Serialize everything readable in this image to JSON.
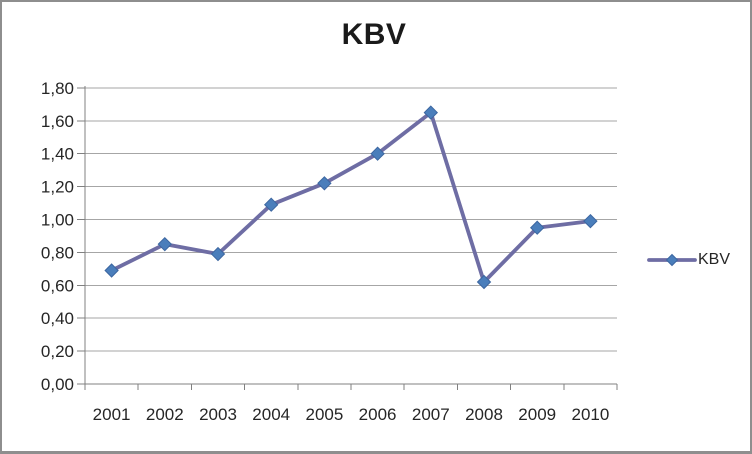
{
  "chart_data": {
    "type": "line",
    "title": "KBV",
    "categories": [
      "2001",
      "2002",
      "2003",
      "2004",
      "2005",
      "2006",
      "2007",
      "2008",
      "2009",
      "2010"
    ],
    "series": [
      {
        "name": "KBV",
        "values": [
          0.69,
          0.85,
          0.79,
          1.09,
          1.22,
          1.4,
          1.65,
          0.62,
          0.95,
          0.99
        ]
      }
    ],
    "y_ticks": {
      "labels": [
        "0,00",
        "0,20",
        "0,40",
        "0,60",
        "0,80",
        "1,00",
        "1,20",
        "1,40",
        "1,60",
        "1,80"
      ],
      "values": [
        0,
        0.2,
        0.4,
        0.6,
        0.8,
        1.0,
        1.2,
        1.4,
        1.6,
        1.8
      ]
    },
    "ylim": [
      0,
      1.8
    ],
    "grid": true,
    "legend_position": "right",
    "marker_shape": "diamond",
    "colors": {
      "line": "#6e6da4",
      "marker_fill": "#4a7ebb",
      "marker_stroke": "#3c66a0",
      "gridline": "#a6a6a6",
      "axis": "#808080",
      "tick_text": "#262626",
      "title_text": "#1a1a1a",
      "frame_border": "#8e8e8e"
    }
  }
}
